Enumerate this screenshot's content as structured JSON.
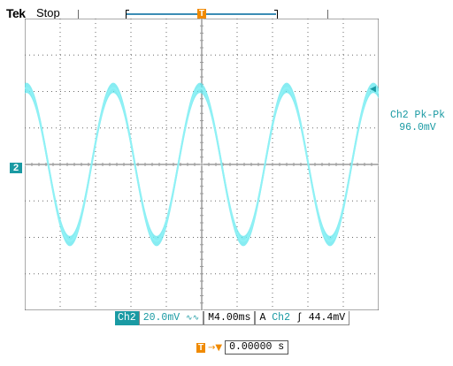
{
  "header": {
    "brand": "Tek",
    "acq_state": "Stop",
    "trigger_marker_glyph": "T"
  },
  "display": {
    "channel_marker": "2",
    "trace_color": "#5fe5ed",
    "grid": {
      "divisions_x": 10,
      "divisions_y": 8,
      "major_color": "#6a6a6a",
      "minor_color": "#9a9a9a"
    },
    "icons": [
      "trigger-position-icon",
      "channel-ground-marker",
      "trigger-level-arrow-icon"
    ]
  },
  "measurement": {
    "label": "Ch2 Pk-Pk",
    "value": "96.0mV"
  },
  "status_bar": {
    "ch_tag": "Ch2",
    "volts_per_div": "20.0mV",
    "bw_symbol": "∿∿",
    "time_mode": "M",
    "time_per_div": "4.00ms",
    "trigger_mode": "A",
    "trigger_source": "Ch2",
    "slope_symbol": "∫",
    "trigger_level": "44.4mV"
  },
  "delay": {
    "value": "0.00000 s",
    "icon": "trigger-delay-icon"
  },
  "chart_data": {
    "type": "line",
    "title": "",
    "xlabel": "",
    "ylabel": "",
    "waveform": "sine",
    "period_divisions": 2.45,
    "amplitude_divisions": 2.1,
    "offset_divisions": 0.0,
    "noise_band_divisions": 0.28,
    "x_divisions": 10,
    "y_divisions": 8
  }
}
